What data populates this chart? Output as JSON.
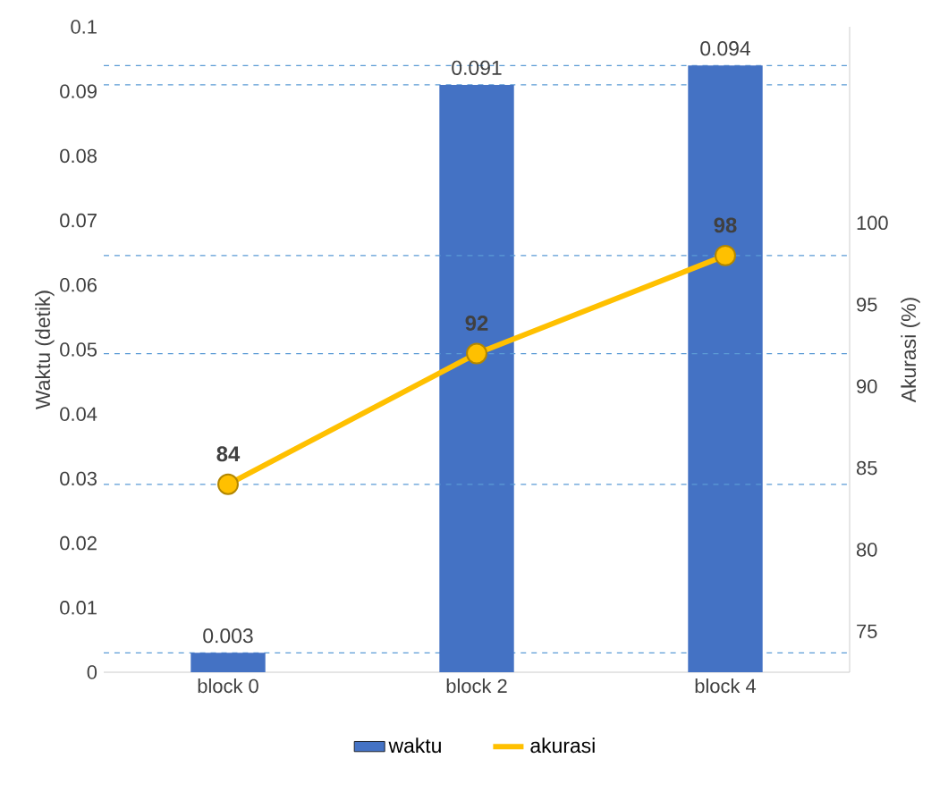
{
  "chart_data": {
    "type": "bar",
    "ylabel": "Waktu (detik)",
    "y2label": "Akurasi (%)",
    "categories": [
      "block 0",
      "block 2",
      "block 4"
    ],
    "series": [
      {
        "name": "waktu",
        "color": "#4472c4",
        "values": [
          0.003,
          0.091,
          0.094
        ]
      },
      {
        "name": "akurasi",
        "type": "line",
        "axis": "y2",
        "color": "#ffc000",
        "marker": "circle",
        "values": [
          84,
          92,
          98
        ]
      }
    ],
    "data_labels": true,
    "ylim": [
      0,
      0.1
    ],
    "yticks": [
      0,
      0.01,
      0.02,
      0.03,
      0.04,
      0.05,
      0.06,
      0.07,
      0.08,
      0.09,
      0.1
    ],
    "y2lim": [
      72.5,
      112
    ],
    "y2ticks": [
      75,
      80,
      85,
      90,
      95,
      100
    ],
    "ref_lines": [
      {
        "axis": "y",
        "value": 0.003,
        "color": "#5b9bd5",
        "line_style": "dashed"
      },
      {
        "axis": "y",
        "value": 0.091,
        "color": "#5b9bd5",
        "line_style": "dashed"
      },
      {
        "axis": "y",
        "value": 0.094,
        "color": "#5b9bd5",
        "line_style": "dashed"
      },
      {
        "axis": "y2",
        "value": 84,
        "color": "#5b9bd5",
        "line_style": "dashed"
      },
      {
        "axis": "y2",
        "value": 92,
        "color": "#5b9bd5",
        "line_style": "dashed"
      },
      {
        "axis": "y2",
        "value": 98,
        "color": "#5b9bd5",
        "line_style": "dashed"
      }
    ],
    "grid": false,
    "legend": "bottom"
  }
}
